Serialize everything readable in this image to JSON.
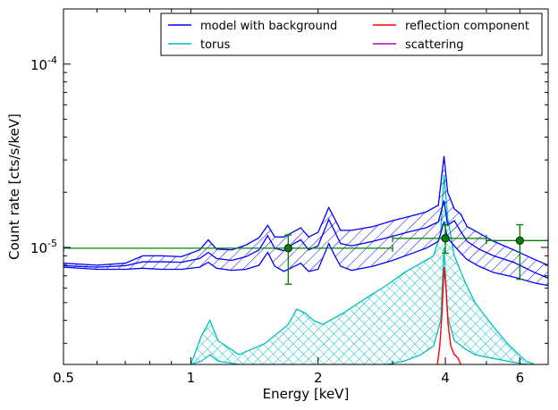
{
  "chart_data": {
    "type": "line",
    "xscale": "log",
    "yscale": "log",
    "xlim": [
      0.5,
      7.0
    ],
    "ylim": [
      2.3e-06,
      0.0002
    ],
    "xlabel": "Energy [keV]",
    "ylabel": "Count rate [cts/s/keV]",
    "x_ticks": [
      {
        "value": 0.5,
        "label": "0.5"
      },
      {
        "value": 1,
        "label": "1"
      },
      {
        "value": 2,
        "label": "2"
      },
      {
        "value": 4,
        "label": "4"
      },
      {
        "value": 6,
        "label": "6"
      }
    ],
    "y_ticks": [
      {
        "value": 1e-05,
        "base": "10",
        "exp": "-5"
      },
      {
        "value": 0.0001,
        "base": "10",
        "exp": "-4"
      }
    ],
    "legend": {
      "placement": "top-right",
      "columns": 2,
      "entries": [
        {
          "label": "model with background",
          "color": "#0000ff"
        },
        {
          "label": "reflection component",
          "color": "#ff0000"
        },
        {
          "label": "torus",
          "color": "#00bfbf"
        },
        {
          "label": "scattering",
          "color": "#bf00bf"
        }
      ]
    },
    "series": [
      {
        "name": "model with background",
        "color": "#0000ff",
        "style": "band-with-median, hatched //",
        "x": [
          0.5,
          0.6,
          0.7,
          0.77,
          0.85,
          0.95,
          1.05,
          1.1,
          1.15,
          1.25,
          1.35,
          1.45,
          1.52,
          1.58,
          1.66,
          1.74,
          1.82,
          1.9,
          2.0,
          2.12,
          2.18,
          2.26,
          2.4,
          2.7,
          3.0,
          3.3,
          3.6,
          3.85,
          3.97,
          4.05,
          4.2,
          4.35,
          4.5,
          4.8,
          5.2,
          5.8,
          6.5,
          7.0
        ],
        "median": [
          7.95e-06,
          7.8e-06,
          7.95e-06,
          8.35e-06,
          8.35e-06,
          8.3e-06,
          8.7e-06,
          9.4e-06,
          8.7e-06,
          8.5e-06,
          8.9e-06,
          9.7e-06,
          1.16e-05,
          9.9e-06,
          9.6e-06,
          1.04e-05,
          1.1e-05,
          9.7e-06,
          1.02e-05,
          1.42e-05,
          1.25e-05,
          1.05e-05,
          1.02e-05,
          1.08e-05,
          1.15e-05,
          1.22e-05,
          1.28e-05,
          1.38e-05,
          1.8e-05,
          1.32e-05,
          1.4e-05,
          1.22e-05,
          1.08e-05,
          9.8e-06,
          9e-06,
          8.3e-06,
          7.3e-06,
          6.8e-06
        ],
        "lower": [
          7.8e-06,
          7.6e-06,
          7.6e-06,
          7.7e-06,
          7.6e-06,
          7.6e-06,
          7.8e-06,
          8.3e-06,
          7.7e-06,
          7.5e-06,
          7.6e-06,
          8e-06,
          9.4e-06,
          7.9e-06,
          7.4e-06,
          7.8e-06,
          8.2e-06,
          7.4e-06,
          7.6e-06,
          1.05e-05,
          9.2e-06,
          7.9e-06,
          7.5e-06,
          7.9e-06,
          8.5e-06,
          9.2e-06,
          9.9e-06,
          1.08e-05,
          1.38e-05,
          1.12e-05,
          1.02e-05,
          9.3e-06,
          8.6e-06,
          7.9e-06,
          7.3e-06,
          6.9e-06,
          6.4e-06,
          6.2e-06
        ],
        "upper": [
          8.2e-06,
          8e-06,
          8.2e-06,
          9e-06,
          9e-06,
          8.9e-06,
          9.7e-06,
          1.1e-05,
          9.8e-06,
          9.7e-06,
          1.03e-05,
          1.13e-05,
          1.32e-05,
          1.14e-05,
          1.14e-05,
          1.21e-05,
          1.28e-05,
          1.14e-05,
          1.21e-05,
          1.65e-05,
          1.46e-05,
          1.24e-05,
          1.24e-05,
          1.3e-05,
          1.4e-05,
          1.48e-05,
          1.56e-05,
          1.7e-05,
          3.15e-05,
          2e-05,
          1.62e-05,
          1.52e-05,
          1.3e-05,
          1.2e-05,
          1.08e-05,
          9.7e-06,
          8.6e-06,
          8e-06
        ]
      },
      {
        "name": "torus",
        "color": "#00bfbf",
        "style": "band, cross-hatched",
        "x": [
          1.0,
          1.06,
          1.11,
          1.16,
          1.3,
          1.5,
          1.7,
          1.78,
          1.86,
          1.95,
          2.05,
          2.3,
          2.6,
          2.9,
          3.2,
          3.5,
          3.75,
          3.9,
          3.97,
          4.05,
          4.2,
          4.45,
          4.7,
          5.1,
          5.6,
          6.2,
          6.5
        ],
        "lower": [
          2.3e-06,
          2.4e-06,
          2.6e-06,
          2.4e-06,
          2.3e-06,
          2.3e-06,
          2.3e-06,
          2.3e-06,
          2.3e-06,
          2.3e-06,
          2.3e-06,
          2.3e-06,
          2.3e-06,
          2.3e-06,
          2.4e-06,
          2.6e-06,
          2.9e-06,
          4e-06,
          1e-05,
          4.2e-06,
          3.1e-06,
          2.8e-06,
          2.6e-06,
          2.5e-06,
          2.4e-06,
          2.3e-06,
          2.3e-06
        ],
        "upper": [
          2.3e-06,
          3.3e-06,
          4e-06,
          3.1e-06,
          2.6e-06,
          3e-06,
          3.8e-06,
          4.6e-06,
          4.4e-06,
          4e-06,
          3.8e-06,
          4.4e-06,
          5.3e-06,
          6.2e-06,
          7.3e-06,
          8.2e-06,
          9e-06,
          1.2e-05,
          2.5e-05,
          1.45e-05,
          9e-06,
          6.5e-06,
          5e-06,
          3.9e-06,
          3e-06,
          2.4e-06,
          2.3e-06
        ]
      },
      {
        "name": "reflection component",
        "color": "#ff0000",
        "style": "line",
        "x": [
          3.83,
          3.88,
          3.93,
          3.97,
          4.01,
          4.06,
          4.12,
          4.2,
          4.28,
          4.35
        ],
        "y": [
          2.3e-06,
          2.9e-06,
          4.5e-06,
          7.8e-06,
          6.2e-06,
          3.8e-06,
          2.9e-06,
          2.6e-06,
          2.5e-06,
          2.3e-06
        ]
      },
      {
        "name": "scattering",
        "color": "#bf00bf",
        "style": "line",
        "x": [],
        "y": []
      }
    ],
    "data_points": {
      "color": "#008000",
      "points": [
        {
          "x": 1.7,
          "y": 9.9e-06,
          "xmin": 0.5,
          "xmax": 3.0,
          "ylo": 6.3e-06,
          "yhi": 1.17e-05
        },
        {
          "x": 4.0,
          "y": 1.12e-05,
          "xmin": 3.0,
          "xmax": 5.0,
          "ylo": 9.3e-06,
          "yhi": 1.33e-05
        },
        {
          "x": 6.0,
          "y": 1.09e-05,
          "xmin": 5.0,
          "xmax": 7.0,
          "ylo": 6.7e-06,
          "yhi": 1.33e-05
        }
      ]
    }
  }
}
